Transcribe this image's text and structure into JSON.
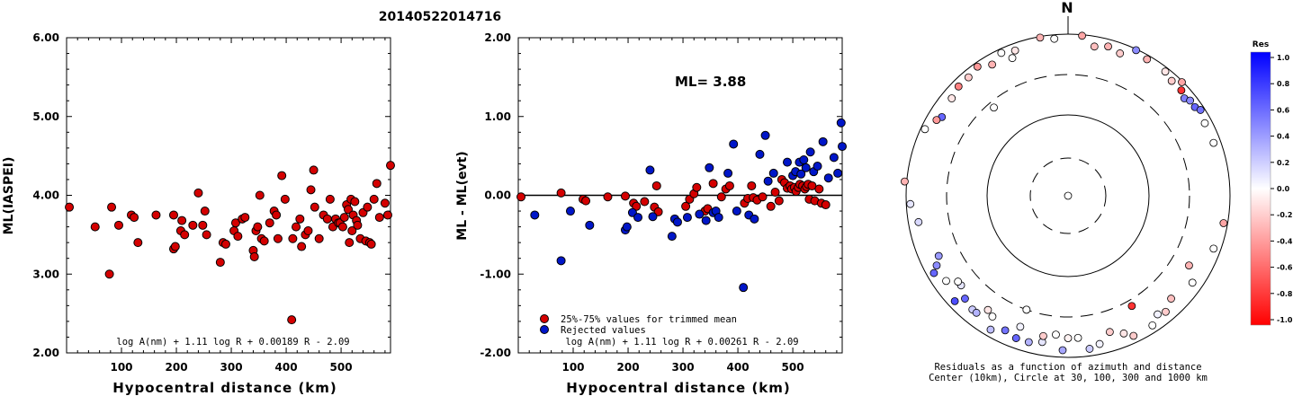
{
  "title": "20140522014716",
  "chart_data": [
    {
      "type": "scatter",
      "ylabel": "ML(IASPEI)",
      "xlabel": "Hypocentral distance (km)",
      "xlim": [
        0,
        590
      ],
      "ylim": [
        2.0,
        6.0
      ],
      "xticks": [
        "100",
        "200",
        "300",
        "400",
        "500"
      ],
      "yticks": [
        "2.00",
        "3.00",
        "4.00",
        "5.00",
        "6.00"
      ],
      "formula": "log A(nm) + 1.11 log R + 0.00189 R - 2.09",
      "color": "#d40000",
      "points": [
        [
          5,
          3.85
        ],
        [
          52,
          3.6
        ],
        [
          78,
          3.0
        ],
        [
          82,
          3.85
        ],
        [
          95,
          3.62
        ],
        [
          118,
          3.75
        ],
        [
          123,
          3.72
        ],
        [
          130,
          3.4
        ],
        [
          163,
          3.75
        ],
        [
          195,
          3.75
        ],
        [
          195,
          3.32
        ],
        [
          198,
          3.35
        ],
        [
          208,
          3.55
        ],
        [
          210,
          3.68
        ],
        [
          215,
          3.5
        ],
        [
          230,
          3.62
        ],
        [
          240,
          4.03
        ],
        [
          248,
          3.62
        ],
        [
          252,
          3.8
        ],
        [
          255,
          3.5
        ],
        [
          280,
          3.15
        ],
        [
          285,
          3.4
        ],
        [
          290,
          3.38
        ],
        [
          305,
          3.55
        ],
        [
          308,
          3.65
        ],
        [
          312,
          3.48
        ],
        [
          320,
          3.7
        ],
        [
          325,
          3.72
        ],
        [
          340,
          3.3
        ],
        [
          342,
          3.22
        ],
        [
          345,
          3.55
        ],
        [
          348,
          3.6
        ],
        [
          352,
          4.0
        ],
        [
          355,
          3.45
        ],
        [
          360,
          3.42
        ],
        [
          370,
          3.65
        ],
        [
          378,
          3.8
        ],
        [
          382,
          3.75
        ],
        [
          385,
          3.45
        ],
        [
          392,
          4.25
        ],
        [
          398,
          3.95
        ],
        [
          410,
          2.42
        ],
        [
          412,
          3.45
        ],
        [
          418,
          3.6
        ],
        [
          425,
          3.7
        ],
        [
          428,
          3.35
        ],
        [
          435,
          3.5
        ],
        [
          440,
          3.55
        ],
        [
          445,
          4.07
        ],
        [
          450,
          4.32
        ],
        [
          452,
          3.85
        ],
        [
          460,
          3.45
        ],
        [
          468,
          3.75
        ],
        [
          475,
          3.7
        ],
        [
          480,
          3.95
        ],
        [
          485,
          3.6
        ],
        [
          490,
          3.7
        ],
        [
          495,
          3.65
        ],
        [
          498,
          3.65
        ],
        [
          503,
          3.6
        ],
        [
          506,
          3.72
        ],
        [
          510,
          3.88
        ],
        [
          513,
          3.82
        ],
        [
          515,
          3.4
        ],
        [
          518,
          3.95
        ],
        [
          520,
          3.55
        ],
        [
          522,
          3.75
        ],
        [
          525,
          3.92
        ],
        [
          528,
          3.68
        ],
        [
          530,
          3.62
        ],
        [
          535,
          3.45
        ],
        [
          540,
          3.78
        ],
        [
          545,
          3.42
        ],
        [
          548,
          3.85
        ],
        [
          552,
          3.4
        ],
        [
          555,
          3.38
        ],
        [
          560,
          3.95
        ],
        [
          565,
          4.15
        ],
        [
          570,
          3.72
        ],
        [
          580,
          3.9
        ],
        [
          585,
          3.75
        ],
        [
          590,
          4.38
        ]
      ]
    },
    {
      "type": "scatter",
      "ylabel": "ML - ML(evt)",
      "xlabel": "Hypocentral distance (km)",
      "xlim": [
        0,
        590
      ],
      "ylim": [
        -2.0,
        2.0
      ],
      "xticks": [
        "100",
        "200",
        "300",
        "400",
        "500"
      ],
      "yticks": [
        "-2.00",
        "-1.00",
        "0.00",
        "1.00",
        "2.00"
      ],
      "annotation": "ML= 3.88",
      "formula": "log A(nm) + 1.11 log R + 0.00261 R - 2.09",
      "legend": [
        {
          "label": "25%-75% values for trimmed mean",
          "color": "#d40000"
        },
        {
          "label": "Rejected values",
          "color": "#0016c8"
        }
      ],
      "series": [
        {
          "name": "25%-75% values for trimmed mean",
          "color": "#d40000",
          "points": [
            [
              5,
              -0.02
            ],
            [
              78,
              0.03
            ],
            [
              118,
              -0.05
            ],
            [
              123,
              -0.07
            ],
            [
              163,
              -0.02
            ],
            [
              195,
              -0.01
            ],
            [
              210,
              -0.1
            ],
            [
              215,
              -0.14
            ],
            [
              230,
              -0.08
            ],
            [
              248,
              -0.15
            ],
            [
              252,
              0.12
            ],
            [
              255,
              -0.21
            ],
            [
              305,
              -0.14
            ],
            [
              312,
              -0.05
            ],
            [
              320,
              0.02
            ],
            [
              325,
              0.1
            ],
            [
              340,
              -0.2
            ],
            [
              345,
              -0.17
            ],
            [
              355,
              0.15
            ],
            [
              370,
              -0.02
            ],
            [
              378,
              0.08
            ],
            [
              385,
              0.12
            ],
            [
              412,
              -0.1
            ],
            [
              418,
              -0.04
            ],
            [
              425,
              0.12
            ],
            [
              428,
              -0.03
            ],
            [
              435,
              -0.06
            ],
            [
              445,
              -0.02
            ],
            [
              460,
              -0.14
            ],
            [
              468,
              0.04
            ],
            [
              475,
              -0.07
            ],
            [
              480,
              0.2
            ],
            [
              485,
              0.16
            ],
            [
              490,
              0.09
            ],
            [
              495,
              0.12
            ],
            [
              498,
              0.08
            ],
            [
              503,
              0.1
            ],
            [
              506,
              0.05
            ],
            [
              510,
              0.1
            ],
            [
              513,
              0.14
            ],
            [
              518,
              0.12
            ],
            [
              522,
              0.08
            ],
            [
              525,
              0.11
            ],
            [
              528,
              0.14
            ],
            [
              530,
              -0.05
            ],
            [
              535,
              0.12
            ],
            [
              540,
              -0.07
            ],
            [
              548,
              0.08
            ],
            [
              552,
              -0.1
            ],
            [
              560,
              -0.12
            ]
          ]
        },
        {
          "name": "Rejected values",
          "color": "#0016c8",
          "points": [
            [
              30,
              -0.25
            ],
            [
              78,
              -0.83
            ],
            [
              95,
              -0.2
            ],
            [
              130,
              -0.38
            ],
            [
              195,
              -0.44
            ],
            [
              198,
              -0.4
            ],
            [
              208,
              -0.22
            ],
            [
              218,
              -0.28
            ],
            [
              240,
              0.32
            ],
            [
              245,
              -0.27
            ],
            [
              280,
              -0.52
            ],
            [
              285,
              -0.3
            ],
            [
              290,
              -0.34
            ],
            [
              308,
              -0.28
            ],
            [
              330,
              -0.24
            ],
            [
              342,
              -0.32
            ],
            [
              348,
              0.35
            ],
            [
              355,
              -0.22
            ],
            [
              360,
              -0.2
            ],
            [
              365,
              -0.28
            ],
            [
              382,
              0.28
            ],
            [
              392,
              0.65
            ],
            [
              398,
              -0.2
            ],
            [
              410,
              -1.17
            ],
            [
              420,
              -0.25
            ],
            [
              430,
              -0.3
            ],
            [
              440,
              0.52
            ],
            [
              450,
              0.76
            ],
            [
              455,
              0.18
            ],
            [
              465,
              0.28
            ],
            [
              490,
              0.42
            ],
            [
              500,
              0.25
            ],
            [
              505,
              0.3
            ],
            [
              512,
              0.42
            ],
            [
              515,
              0.27
            ],
            [
              520,
              0.45
            ],
            [
              524,
              0.35
            ],
            [
              532,
              0.55
            ],
            [
              538,
              0.3
            ],
            [
              545,
              0.37
            ],
            [
              555,
              0.68
            ],
            [
              565,
              0.22
            ],
            [
              575,
              0.48
            ],
            [
              582,
              0.28
            ],
            [
              588,
              0.92
            ],
            [
              590,
              0.62
            ]
          ]
        }
      ]
    },
    {
      "type": "polar-scatter",
      "north_label": "N",
      "caption_1": "Residuals as a function of azimuth and distance",
      "caption_2": "Center (10km), Circle at 30, 100, 300 and 1000 km",
      "colorbar": {
        "title": "Res",
        "ticks": [
          "1.0",
          "0.8",
          "0.6",
          "0.4",
          "0.2",
          "0.0",
          "-0.2",
          "-0.4",
          "-0.6",
          "-0.8",
          "-1.0"
        ],
        "max_color": "#0000ff",
        "zero_color": "#ffffff",
        "min_color": "#ff0000"
      },
      "points": [
        [
          5,
          0.0,
          0.0
        ],
        [
          200,
          2.0,
          -0.05
        ],
        [
          200,
          2.0,
          0.0
        ],
        [
          320,
          1.9,
          0.0
        ],
        [
          150,
          2.1,
          -0.8
        ],
        [
          120,
          2.3,
          -0.3
        ],
        [
          180,
          2.35,
          -0.05
        ],
        [
          15,
          2.55,
          -0.3
        ],
        [
          30,
          2.6,
          -0.3
        ],
        [
          38,
          2.6,
          -0.1
        ],
        [
          42,
          2.55,
          -0.2
        ],
        [
          45,
          2.65,
          -0.35
        ],
        [
          47,
          2.55,
          -0.8
        ],
        [
          50,
          2.5,
          0.5
        ],
        [
          52,
          2.55,
          0.45
        ],
        [
          55,
          2.55,
          0.6
        ],
        [
          57,
          2.6,
          0.55
        ],
        [
          62,
          2.55,
          0.0
        ],
        [
          70,
          2.55,
          0.0
        ],
        [
          -5,
          2.6,
          0.0
        ],
        [
          -10,
          2.65,
          -0.3
        ],
        [
          5,
          2.65,
          -0.35
        ],
        [
          20,
          2.5,
          -0.2
        ],
        [
          10,
          2.5,
          -0.25
        ],
        [
          25,
          2.65,
          0.45
        ],
        [
          -20,
          2.55,
          -0.1
        ],
        [
          -25,
          2.6,
          0.0
        ],
        [
          -22,
          2.45,
          0.0
        ],
        [
          -30,
          2.5,
          -0.3
        ],
        [
          -35,
          2.6,
          -0.4
        ],
        [
          -40,
          2.55,
          -0.2
        ],
        [
          -45,
          2.55,
          -0.5
        ],
        [
          -50,
          2.5,
          -0.1
        ],
        [
          -58,
          2.45,
          0.6
        ],
        [
          -60,
          2.5,
          -0.4
        ],
        [
          -65,
          2.6,
          0.0
        ],
        [
          -85,
          2.7,
          -0.3
        ],
        [
          -93,
          2.6,
          0.1
        ],
        [
          -115,
          2.35,
          0.4
        ],
        [
          -118,
          2.45,
          0.45
        ],
        [
          -120,
          2.55,
          0.6
        ],
        [
          -125,
          2.45,
          0.0
        ],
        [
          -130,
          2.3,
          0.1
        ],
        [
          -133,
          2.55,
          0.7
        ],
        [
          -135,
          2.4,
          0.6
        ],
        [
          -140,
          2.45,
          0.2
        ],
        [
          -142,
          2.45,
          0.3
        ],
        [
          -148,
          2.35,
          0.0
        ],
        [
          -150,
          2.55,
          0.25
        ],
        [
          -155,
          2.45,
          0.55
        ],
        [
          -160,
          2.5,
          0.6
        ],
        [
          -165,
          2.5,
          0.3
        ],
        [
          -170,
          2.45,
          0.1
        ],
        [
          -175,
          2.3,
          0.0
        ],
        [
          -178,
          2.55,
          0.35
        ],
        [
          -170,
          2.35,
          -0.2
        ],
        [
          -145,
          2.3,
          -0.1
        ],
        [
          -128,
          2.3,
          0.0
        ],
        [
          -100,
          2.5,
          0.15
        ],
        [
          100,
          2.6,
          -0.35
        ],
        [
          110,
          2.55,
          0.0
        ],
        [
          125,
          2.5,
          0.0
        ],
        [
          135,
          2.4,
          -0.25
        ],
        [
          140,
          2.5,
          -0.2
        ],
        [
          143,
          2.45,
          0.05
        ],
        [
          147,
          2.55,
          0.0
        ],
        [
          155,
          2.55,
          -0.2
        ],
        [
          158,
          2.45,
          -0.1
        ],
        [
          163,
          2.35,
          -0.2
        ],
        [
          168,
          2.5,
          0.05
        ],
        [
          172,
          2.55,
          0.2
        ],
        [
          176,
          2.35,
          0.0
        ],
        [
          -160,
          2.3,
          0.05
        ]
      ]
    }
  ]
}
